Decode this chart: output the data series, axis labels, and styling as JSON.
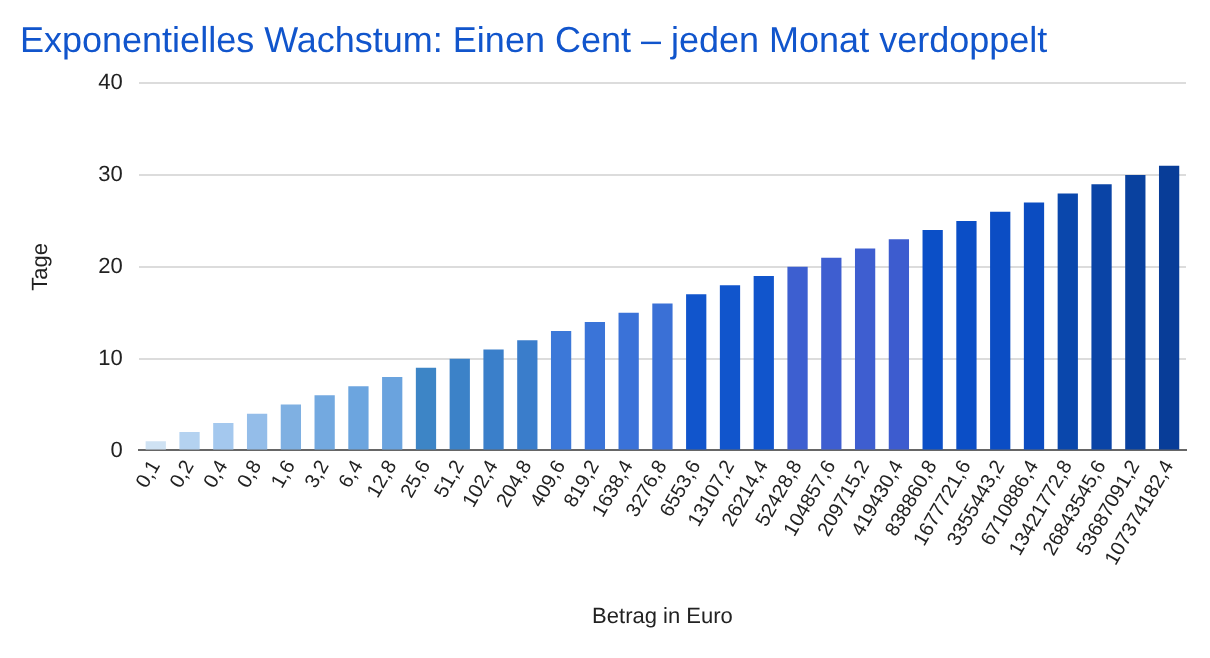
{
  "chart_data": {
    "type": "bar",
    "title": "Exponentielles Wachstum: Einen Cent – jeden Monat verdoppelt",
    "xlabel": "Betrag in Euro",
    "ylabel": "Tage",
    "categories": [
      "0,1",
      "0,2",
      "0,4",
      "0,8",
      "1,6",
      "3,2",
      "6,4",
      "12,8",
      "25,6",
      "51,2",
      "102,4",
      "204,8",
      "409,6",
      "819,2",
      "1638,4",
      "3276,8",
      "6553,6",
      "13107,2",
      "26214,4",
      "52428,8",
      "104857,6",
      "209715,2",
      "419430,4",
      "838860,8",
      "1677721,6",
      "3355443,2",
      "6710886,4",
      "13421772,8",
      "26843545,6",
      "53687091,2",
      "107374182,4"
    ],
    "values": [
      1,
      2,
      3,
      4,
      5,
      6,
      7,
      8,
      9,
      10,
      11,
      12,
      13,
      14,
      15,
      16,
      17,
      18,
      19,
      20,
      21,
      22,
      23,
      24,
      25,
      26,
      27,
      28,
      29,
      30,
      31
    ],
    "colors": [
      "#cfe2f3",
      "#b4d2f0",
      "#a4c8ee",
      "#94bde9",
      "#7fb0e2",
      "#73a9e0",
      "#6ca5df",
      "#6aa3de",
      "#3d85c6",
      "#3c82c8",
      "#3a7fca",
      "#3a7dcb",
      "#3c78d8",
      "#3a74d8",
      "#3a72d8",
      "#3a70d6",
      "#1155cc",
      "#1155cc",
      "#1155cc",
      "#3d5fd0",
      "#3e5ed0",
      "#3e5ed0",
      "#3d5ccf",
      "#0b4fc7",
      "#0b4ec6",
      "#0b4dc4",
      "#0b4cc1",
      "#0a47ac",
      "#0a44a6",
      "#09419f",
      "#083d98"
    ],
    "ylim": [
      0,
      40
    ],
    "yticks": [
      0,
      10,
      20,
      30,
      40
    ],
    "grid": "y",
    "legend": false
  }
}
